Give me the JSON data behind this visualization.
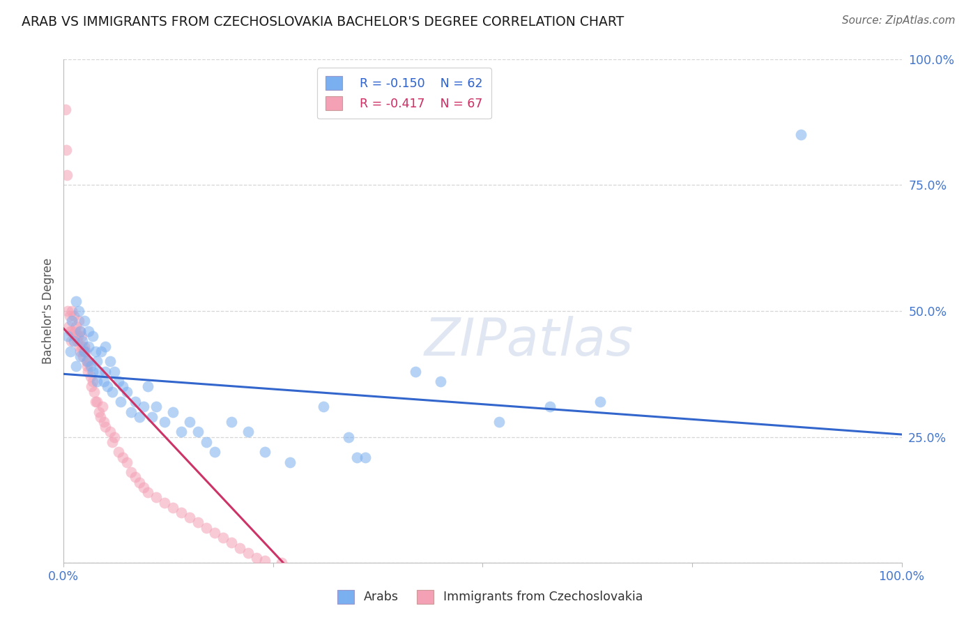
{
  "title": "ARAB VS IMMIGRANTS FROM CZECHOSLOVAKIA BACHELOR'S DEGREE CORRELATION CHART",
  "source": "Source: ZipAtlas.com",
  "ylabel": "Bachelor's Degree",
  "xlim": [
    0.0,
    1.0
  ],
  "ylim": [
    0.0,
    1.0
  ],
  "grid_color": "#cccccc",
  "background_color": "#ffffff",
  "watermark": "ZIPatlas",
  "legend_r1": "R = -0.150",
  "legend_n1": "N = 62",
  "legend_r2": "R = -0.417",
  "legend_n2": "N = 67",
  "blue_color": "#7aaff0",
  "pink_color": "#f4a0b5",
  "blue_line_color": "#3366cc",
  "pink_line_color": "#cc3366",
  "legend_label1": "Arabs",
  "legend_label2": "Immigrants from Czechoslovakia",
  "title_color": "#1a1a1a",
  "axis_label_color": "#4477cc",
  "blue_scatter_x": [
    0.005,
    0.008,
    0.01,
    0.012,
    0.015,
    0.015,
    0.018,
    0.02,
    0.02,
    0.022,
    0.025,
    0.025,
    0.028,
    0.03,
    0.03,
    0.032,
    0.035,
    0.035,
    0.038,
    0.04,
    0.04,
    0.042,
    0.045,
    0.048,
    0.05,
    0.05,
    0.052,
    0.055,
    0.058,
    0.06,
    0.065,
    0.068,
    0.07,
    0.075,
    0.08,
    0.085,
    0.09,
    0.095,
    0.1,
    0.105,
    0.11,
    0.12,
    0.13,
    0.14,
    0.15,
    0.16,
    0.17,
    0.18,
    0.2,
    0.22,
    0.24,
    0.27,
    0.31,
    0.34,
    0.35,
    0.36,
    0.42,
    0.45,
    0.52,
    0.58,
    0.64,
    0.88
  ],
  "blue_scatter_y": [
    0.45,
    0.42,
    0.48,
    0.44,
    0.52,
    0.39,
    0.5,
    0.46,
    0.41,
    0.44,
    0.48,
    0.42,
    0.4,
    0.46,
    0.43,
    0.39,
    0.45,
    0.38,
    0.42,
    0.4,
    0.36,
    0.38,
    0.42,
    0.36,
    0.43,
    0.38,
    0.35,
    0.4,
    0.34,
    0.38,
    0.36,
    0.32,
    0.35,
    0.34,
    0.3,
    0.32,
    0.29,
    0.31,
    0.35,
    0.29,
    0.31,
    0.28,
    0.3,
    0.26,
    0.28,
    0.26,
    0.24,
    0.22,
    0.28,
    0.26,
    0.22,
    0.2,
    0.31,
    0.25,
    0.21,
    0.21,
    0.38,
    0.36,
    0.28,
    0.31,
    0.32,
    0.85
  ],
  "pink_scatter_x": [
    0.002,
    0.003,
    0.004,
    0.005,
    0.006,
    0.007,
    0.008,
    0.009,
    0.01,
    0.01,
    0.012,
    0.013,
    0.014,
    0.015,
    0.016,
    0.017,
    0.018,
    0.019,
    0.02,
    0.02,
    0.021,
    0.022,
    0.023,
    0.024,
    0.025,
    0.026,
    0.027,
    0.028,
    0.029,
    0.03,
    0.032,
    0.033,
    0.035,
    0.036,
    0.038,
    0.04,
    0.042,
    0.044,
    0.046,
    0.048,
    0.05,
    0.055,
    0.058,
    0.06,
    0.065,
    0.07,
    0.075,
    0.08,
    0.085,
    0.09,
    0.095,
    0.1,
    0.11,
    0.12,
    0.13,
    0.14,
    0.15,
    0.16,
    0.17,
    0.18,
    0.19,
    0.2,
    0.21,
    0.22,
    0.23,
    0.24,
    0.26
  ],
  "pink_scatter_y": [
    0.9,
    0.82,
    0.77,
    0.5,
    0.47,
    0.49,
    0.46,
    0.44,
    0.5,
    0.46,
    0.49,
    0.45,
    0.46,
    0.47,
    0.44,
    0.45,
    0.48,
    0.43,
    0.46,
    0.42,
    0.45,
    0.43,
    0.41,
    0.42,
    0.43,
    0.42,
    0.4,
    0.39,
    0.38,
    0.4,
    0.37,
    0.35,
    0.36,
    0.34,
    0.32,
    0.32,
    0.3,
    0.29,
    0.31,
    0.28,
    0.27,
    0.26,
    0.24,
    0.25,
    0.22,
    0.21,
    0.2,
    0.18,
    0.17,
    0.16,
    0.15,
    0.14,
    0.13,
    0.12,
    0.11,
    0.1,
    0.09,
    0.08,
    0.07,
    0.06,
    0.05,
    0.04,
    0.03,
    0.02,
    0.01,
    0.005,
    0.0
  ],
  "blue_line_x0": 0.0,
  "blue_line_x1": 1.0,
  "blue_line_y0": 0.375,
  "blue_line_y1": 0.255,
  "pink_line_x0": 0.0,
  "pink_line_x1": 0.265,
  "pink_line_y0": 0.465,
  "pink_line_y1": -0.005
}
